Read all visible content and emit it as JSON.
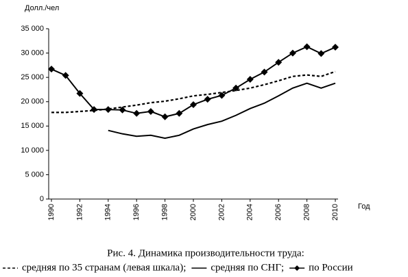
{
  "chart_data": {
    "type": "line",
    "title": "Рис. 4. Динамика производительности труда:",
    "y_label": "Долл./чел",
    "x_label": "Год",
    "x": [
      1990,
      1991,
      1992,
      1993,
      1994,
      1995,
      1996,
      1997,
      1998,
      1999,
      2000,
      2001,
      2002,
      2003,
      2004,
      2005,
      2006,
      2007,
      2008,
      2009,
      2010
    ],
    "series": [
      {
        "name": "средняя по 35 странам (левая шкала);",
        "color": "#000000",
        "line_style": "dashed",
        "marker": "none",
        "values": [
          17800,
          17800,
          18000,
          18200,
          18500,
          18900,
          19300,
          19800,
          20100,
          20600,
          21200,
          21500,
          21900,
          22300,
          22800,
          23500,
          24300,
          25200,
          25500,
          25200,
          26200
        ]
      },
      {
        "name": "средняя по СНГ;",
        "color": "#000000",
        "line_style": "solid",
        "marker": "none",
        "values": [
          null,
          null,
          null,
          null,
          14100,
          13400,
          12900,
          13100,
          12500,
          13100,
          14400,
          15300,
          16000,
          17200,
          18600,
          19700,
          21200,
          22800,
          23800,
          22800,
          23800
        ]
      },
      {
        "name": "по России",
        "color": "#000000",
        "line_style": "solid",
        "marker": "diamond",
        "values": [
          26700,
          25400,
          21700,
          18400,
          18400,
          18300,
          17600,
          18000,
          16900,
          17600,
          19400,
          20500,
          21300,
          22800,
          24600,
          26100,
          28100,
          30000,
          31300,
          29900,
          31200
        ]
      }
    ],
    "xlim": [
      1990,
      2010
    ],
    "xticks": [
      1990,
      1992,
      1994,
      1996,
      1998,
      2000,
      2002,
      2004,
      2006,
      2008,
      2010
    ],
    "ylim": [
      0,
      35000
    ],
    "yticks": [
      0,
      {
        "value": 5000,
        "label": "5 000"
      },
      {
        "value": 10000,
        "label": "10 000"
      },
      {
        "value": 15000,
        "label": "15 000"
      },
      {
        "value": 20000,
        "label": "20 000"
      },
      {
        "value": 25000,
        "label": "25 000"
      },
      {
        "value": 30000,
        "label": "30 000"
      },
      {
        "value": 35000,
        "label": "35 000"
      }
    ],
    "grid": false,
    "legend": "bottom"
  }
}
